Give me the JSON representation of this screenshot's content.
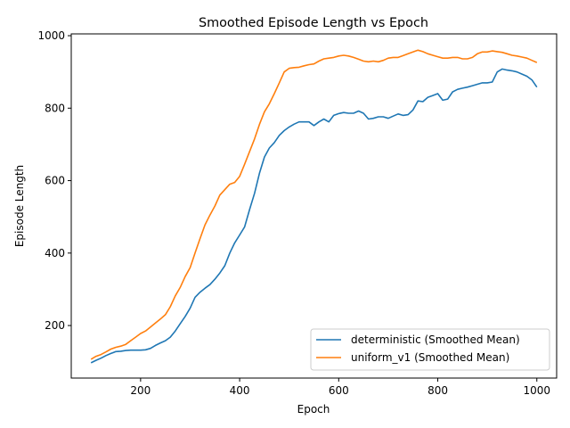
{
  "chart_data": {
    "type": "line",
    "title": "Smoothed Episode Length vs Epoch",
    "xlabel": "Epoch",
    "ylabel": "Episode Length",
    "xlim": [
      60,
      1040
    ],
    "ylim": [
      55,
      1005
    ],
    "xticks": [
      200,
      400,
      600,
      800,
      1000
    ],
    "yticks": [
      200,
      400,
      600,
      800,
      1000
    ],
    "grid": false,
    "legend_position": "lower-right",
    "series": [
      {
        "name": "deterministic (Smoothed Mean)",
        "color": "#1f77b4",
        "x": [
          100,
          110,
          120,
          130,
          140,
          150,
          160,
          170,
          180,
          190,
          200,
          210,
          220,
          230,
          240,
          250,
          260,
          270,
          280,
          290,
          300,
          310,
          320,
          330,
          340,
          350,
          360,
          370,
          380,
          390,
          400,
          410,
          420,
          430,
          440,
          450,
          460,
          470,
          480,
          490,
          500,
          510,
          520,
          530,
          540,
          550,
          560,
          570,
          580,
          590,
          600,
          610,
          620,
          630,
          640,
          650,
          660,
          670,
          680,
          690,
          700,
          710,
          720,
          730,
          740,
          750,
          760,
          770,
          780,
          790,
          800,
          810,
          820,
          830,
          840,
          850,
          860,
          870,
          880,
          890,
          900,
          910,
          920,
          930,
          940,
          950,
          960,
          970,
          980,
          990,
          1000
        ],
        "y": [
          97,
          104,
          110,
          117,
          123,
          128,
          129,
          131,
          132,
          132,
          132,
          133,
          137,
          145,
          152,
          158,
          168,
          185,
          205,
          225,
          248,
          278,
          292,
          303,
          313,
          328,
          345,
          365,
          400,
          428,
          450,
          472,
          520,
          565,
          620,
          665,
          690,
          705,
          725,
          738,
          748,
          756,
          762,
          762,
          762,
          752,
          762,
          770,
          762,
          780,
          785,
          788,
          786,
          786,
          792,
          786,
          770,
          772,
          776,
          776,
          772,
          778,
          784,
          780,
          782,
          795,
          820,
          818,
          830,
          835,
          840,
          822,
          825,
          845,
          852,
          855,
          858,
          862,
          866,
          870,
          870,
          872,
          900,
          908,
          905,
          903,
          900,
          894,
          888,
          878,
          858
        ]
      },
      {
        "name": "uniform_v1 (Smoothed Mean)",
        "color": "#ff7f0e",
        "x": [
          100,
          110,
          120,
          130,
          140,
          150,
          160,
          170,
          180,
          190,
          200,
          210,
          220,
          230,
          240,
          250,
          260,
          270,
          280,
          290,
          300,
          310,
          320,
          330,
          340,
          350,
          360,
          370,
          380,
          390,
          400,
          410,
          420,
          430,
          440,
          450,
          460,
          470,
          480,
          490,
          500,
          510,
          520,
          530,
          540,
          550,
          560,
          570,
          580,
          590,
          600,
          610,
          620,
          630,
          640,
          650,
          660,
          670,
          680,
          690,
          700,
          710,
          720,
          730,
          740,
          750,
          760,
          770,
          780,
          790,
          800,
          810,
          820,
          830,
          840,
          850,
          860,
          870,
          880,
          890,
          900,
          910,
          920,
          930,
          940,
          950,
          960,
          970,
          980,
          990,
          1000
        ],
        "y": [
          107,
          115,
          120,
          127,
          135,
          140,
          143,
          148,
          158,
          168,
          178,
          185,
          196,
          207,
          218,
          230,
          252,
          282,
          305,
          335,
          360,
          400,
          440,
          478,
          505,
          530,
          560,
          575,
          590,
          595,
          612,
          645,
          680,
          715,
          755,
          790,
          812,
          840,
          870,
          900,
          910,
          912,
          913,
          917,
          920,
          922,
          930,
          936,
          938,
          940,
          944,
          946,
          944,
          940,
          935,
          930,
          928,
          930,
          928,
          932,
          938,
          940,
          940,
          945,
          950,
          955,
          960,
          956,
          950,
          946,
          942,
          938,
          938,
          940,
          940,
          936,
          936,
          940,
          950,
          955,
          955,
          958,
          956,
          954,
          950,
          946,
          944,
          941,
          938,
          932,
          926
        ]
      }
    ]
  }
}
